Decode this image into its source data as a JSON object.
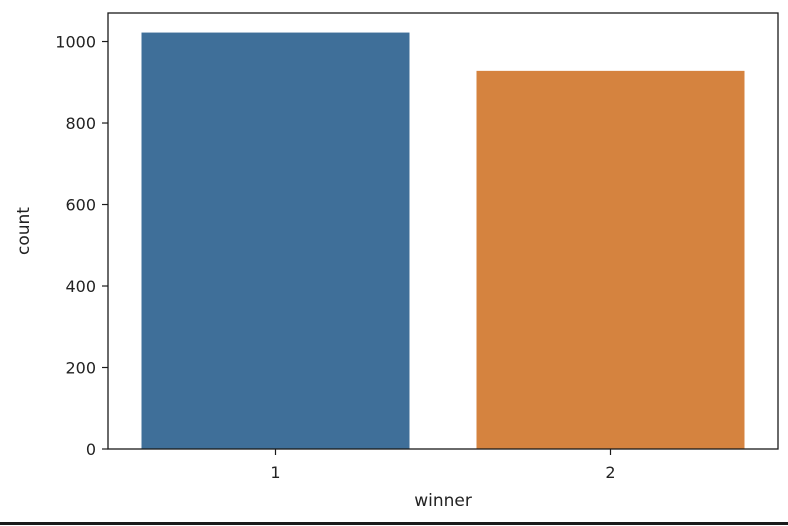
{
  "chart_data": {
    "type": "bar",
    "categories": [
      "1",
      "2"
    ],
    "values": [
      1022,
      928
    ],
    "xlabel": "winner",
    "ylabel": "count",
    "ylim": [
      0,
      1070
    ],
    "yticks": [
      0,
      200,
      400,
      600,
      800,
      1000
    ],
    "grid": false,
    "colors": [
      "#3f6f99",
      "#d5833f"
    ]
  }
}
